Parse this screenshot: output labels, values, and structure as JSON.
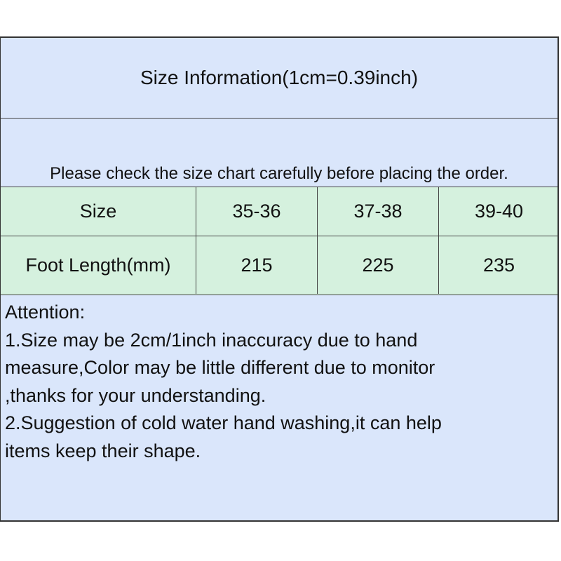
{
  "title": "Size Information(1cm=0.39inch)",
  "note": "Please check the size chart carefully before placing the order.",
  "table": {
    "rows": [
      [
        "Size",
        "35-36",
        "37-38",
        "39-40"
      ],
      [
        "Foot Length(mm)",
        "215",
        "225",
        "235"
      ]
    ]
  },
  "attention": {
    "lines": [
      "Attention:",
      "1.Size may be 2cm/1inch inaccuracy due to hand",
      "measure,Color may be little different due to monitor",
      ",thanks for your understanding.",
      "2.Suggestion of cold water hand washing,it can help",
      "items keep their shape."
    ]
  },
  "colors": {
    "header_bg": "#dae6fb",
    "table_bg": "#d5f1de",
    "border": "#333333"
  }
}
